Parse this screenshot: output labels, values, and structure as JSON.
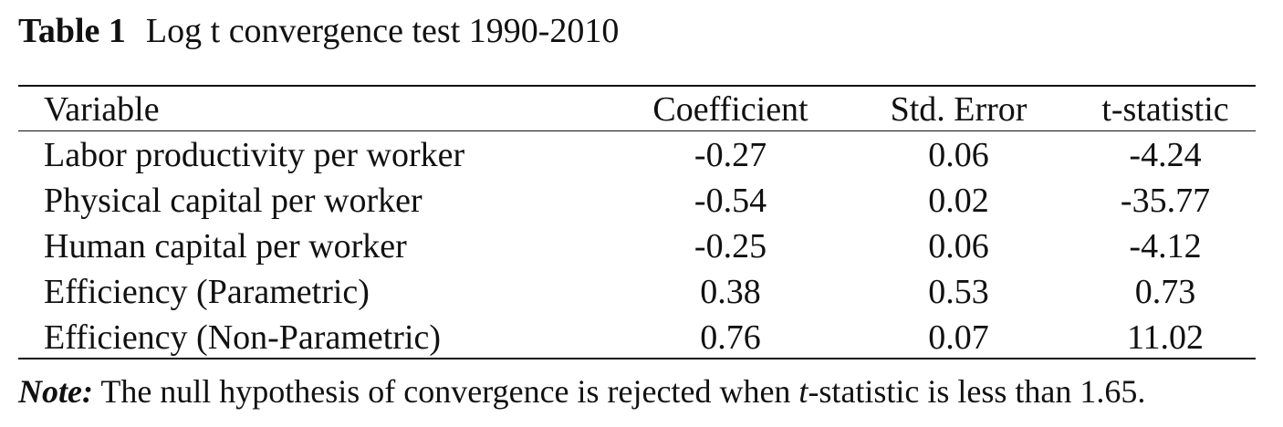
{
  "table": {
    "label": "Table 1",
    "title": "Log t convergence test 1990-2010",
    "columns": [
      "Variable",
      "Coefficient",
      "Std. Error",
      "t-statistic"
    ],
    "rows": [
      {
        "variable": "Labor productivity per worker",
        "coefficient": "-0.27",
        "std_error": "0.06",
        "t_statistic": "-4.24"
      },
      {
        "variable": "Physical capital per worker",
        "coefficient": "-0.54",
        "std_error": "0.02",
        "t_statistic": "-35.77"
      },
      {
        "variable": "Human capital per worker",
        "coefficient": "-0.25",
        "std_error": "0.06",
        "t_statistic": "-4.12"
      },
      {
        "variable": "Efficiency (Parametric)",
        "coefficient": "0.38",
        "std_error": "0.53",
        "t_statistic": "0.73"
      },
      {
        "variable": "Efficiency (Non-Parametric)",
        "coefficient": "0.76",
        "std_error": "0.07",
        "t_statistic": "11.02"
      }
    ]
  },
  "note": {
    "label": "Note:",
    "text_before": "The null hypothesis of convergence is rejected when",
    "italic_term": "t",
    "text_after": "-statistic is less than 1.65."
  }
}
